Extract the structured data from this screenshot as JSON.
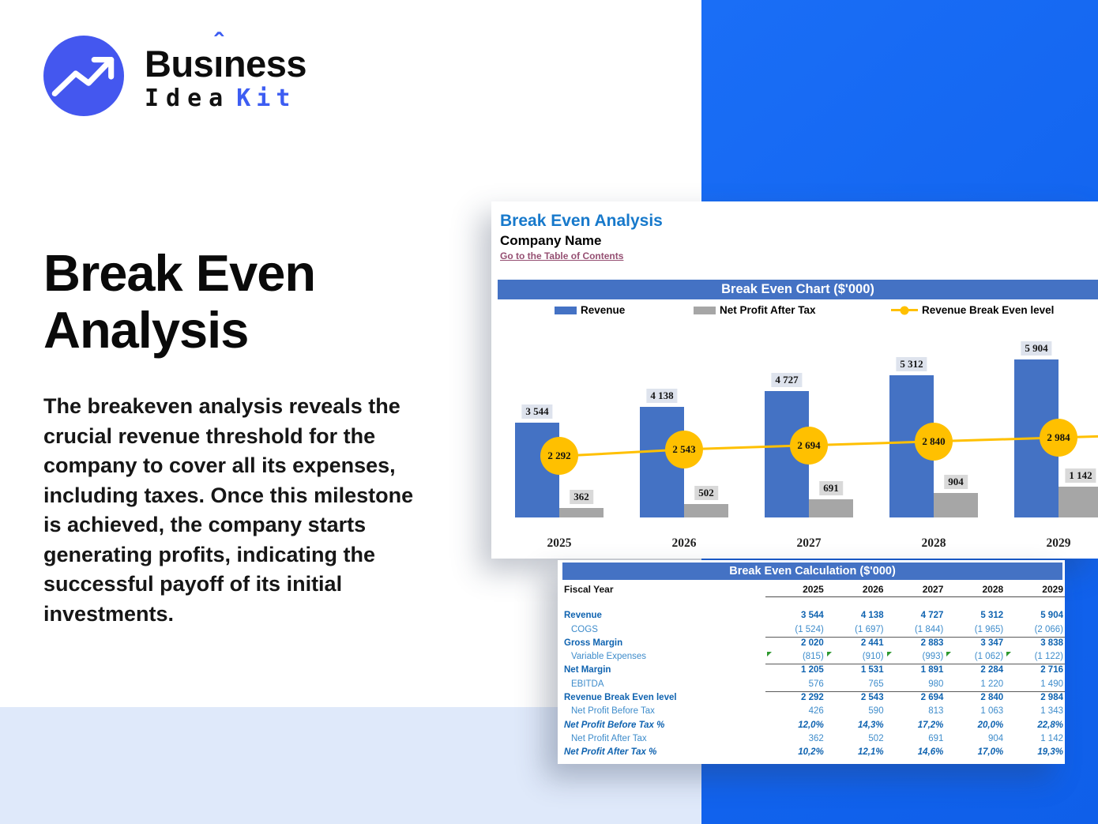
{
  "logo": {
    "word1_pre": "Bus",
    "word1_i": "ı",
    "word1_accent": "ˆ",
    "word1_post": "ness",
    "word2": "Idea",
    "word3": "Kit"
  },
  "hero": {
    "title": "Break Even Analysis",
    "description": "The breakeven analysis reveals the crucial revenue threshold for the company to cover all its expenses, including taxes. Once this milestone is achieved, the company starts generating profits, indicating the successful payoff of its initial investments."
  },
  "sheet": {
    "title": "Break Even Analysis",
    "company": "Company Name",
    "link": "Go to the Table of Contents"
  },
  "chart_data": {
    "type": "bar",
    "title": "Break Even Chart ($'000)",
    "categories": [
      "2025",
      "2026",
      "2027",
      "2028",
      "2029"
    ],
    "series": [
      {
        "name": "Revenue",
        "type": "bar",
        "color": "#4472C4",
        "values": [
          3544,
          4138,
          4727,
          5312,
          5904
        ],
        "labels": [
          "3 544",
          "4 138",
          "4 727",
          "5 312",
          "5 904"
        ]
      },
      {
        "name": "Net Profit After Tax",
        "type": "bar",
        "color": "#A6A6A6",
        "values": [
          362,
          502,
          691,
          904,
          1142
        ],
        "labels": [
          "362",
          "502",
          "691",
          "904",
          "1 142"
        ]
      },
      {
        "name": "Revenue Break Even level",
        "type": "line",
        "color": "#FFC000",
        "values": [
          2292,
          2543,
          2694,
          2840,
          2984
        ],
        "labels": [
          "2 292",
          "2 543",
          "2 694",
          "2 840",
          "2 984"
        ]
      }
    ],
    "ylim": [
      0,
      5904
    ],
    "grid": false,
    "legend_position": "top"
  },
  "table": {
    "title": "Break Even Calculation ($'000)",
    "fiscal_label": "Fiscal Year",
    "years": [
      "2025",
      "2026",
      "2027",
      "2028",
      "2029"
    ],
    "rows": [
      {
        "label": "Revenue",
        "style": "bold",
        "underline": false,
        "markers": false,
        "values": [
          "3 544",
          "4 138",
          "4 727",
          "5 312",
          "5 904"
        ]
      },
      {
        "label": "COGS",
        "style": "sub",
        "underline": true,
        "markers": false,
        "values": [
          "(1 524)",
          "(1 697)",
          "(1 844)",
          "(1 965)",
          "(2 066)"
        ]
      },
      {
        "label": "Gross Margin",
        "style": "bold",
        "underline": false,
        "markers": false,
        "values": [
          "2 020",
          "2 441",
          "2 883",
          "3 347",
          "3 838"
        ]
      },
      {
        "label": "Variable Expenses",
        "style": "sub",
        "underline": true,
        "markers": true,
        "values": [
          "(815)",
          "(910)",
          "(993)",
          "(1 062)",
          "(1 122)"
        ]
      },
      {
        "label": "Net Margin",
        "style": "bold",
        "underline": false,
        "markers": false,
        "values": [
          "1 205",
          "1 531",
          "1 891",
          "2 284",
          "2 716"
        ]
      },
      {
        "label": "EBITDA",
        "style": "sub",
        "underline": true,
        "markers": false,
        "values": [
          "576",
          "765",
          "980",
          "1 220",
          "1 490"
        ]
      },
      {
        "label": "Revenue Break Even level",
        "style": "bold",
        "underline": false,
        "markers": false,
        "values": [
          "2 292",
          "2 543",
          "2 694",
          "2 840",
          "2 984"
        ]
      },
      {
        "label": "Net Profit Before Tax",
        "style": "sub",
        "underline": false,
        "markers": false,
        "values": [
          "426",
          "590",
          "813",
          "1 063",
          "1 343"
        ]
      },
      {
        "label": "Net Profit Before Tax %",
        "style": "pct",
        "underline": false,
        "markers": false,
        "values": [
          "12,0%",
          "14,3%",
          "17,2%",
          "20,0%",
          "22,8%"
        ]
      },
      {
        "label": "Net Profit After Tax",
        "style": "sub",
        "underline": false,
        "markers": false,
        "values": [
          "362",
          "502",
          "691",
          "904",
          "1 142"
        ]
      },
      {
        "label": "Net Profit After Tax %",
        "style": "pct",
        "underline": false,
        "markers": false,
        "values": [
          "10,2%",
          "12,1%",
          "14,6%",
          "17,0%",
          "19,3%"
        ]
      }
    ]
  },
  "colors": {
    "brand_blue": "#1468F2",
    "logo_circle_blue": "#4457EF",
    "logo_accent_blue": "#3D5DF2",
    "panel_header_blue": "#4472C4",
    "bar_blue": "#4472C4",
    "bar_gray": "#A6A6A6",
    "line_yellow": "#FFC000",
    "link_maroon": "#954F72",
    "sheet_title_blue": "#1779CB",
    "light_blue_band": "#DFE9FA",
    "table_bold_blue": "#0F63B0",
    "table_sub_blue": "#3E8CCB"
  }
}
